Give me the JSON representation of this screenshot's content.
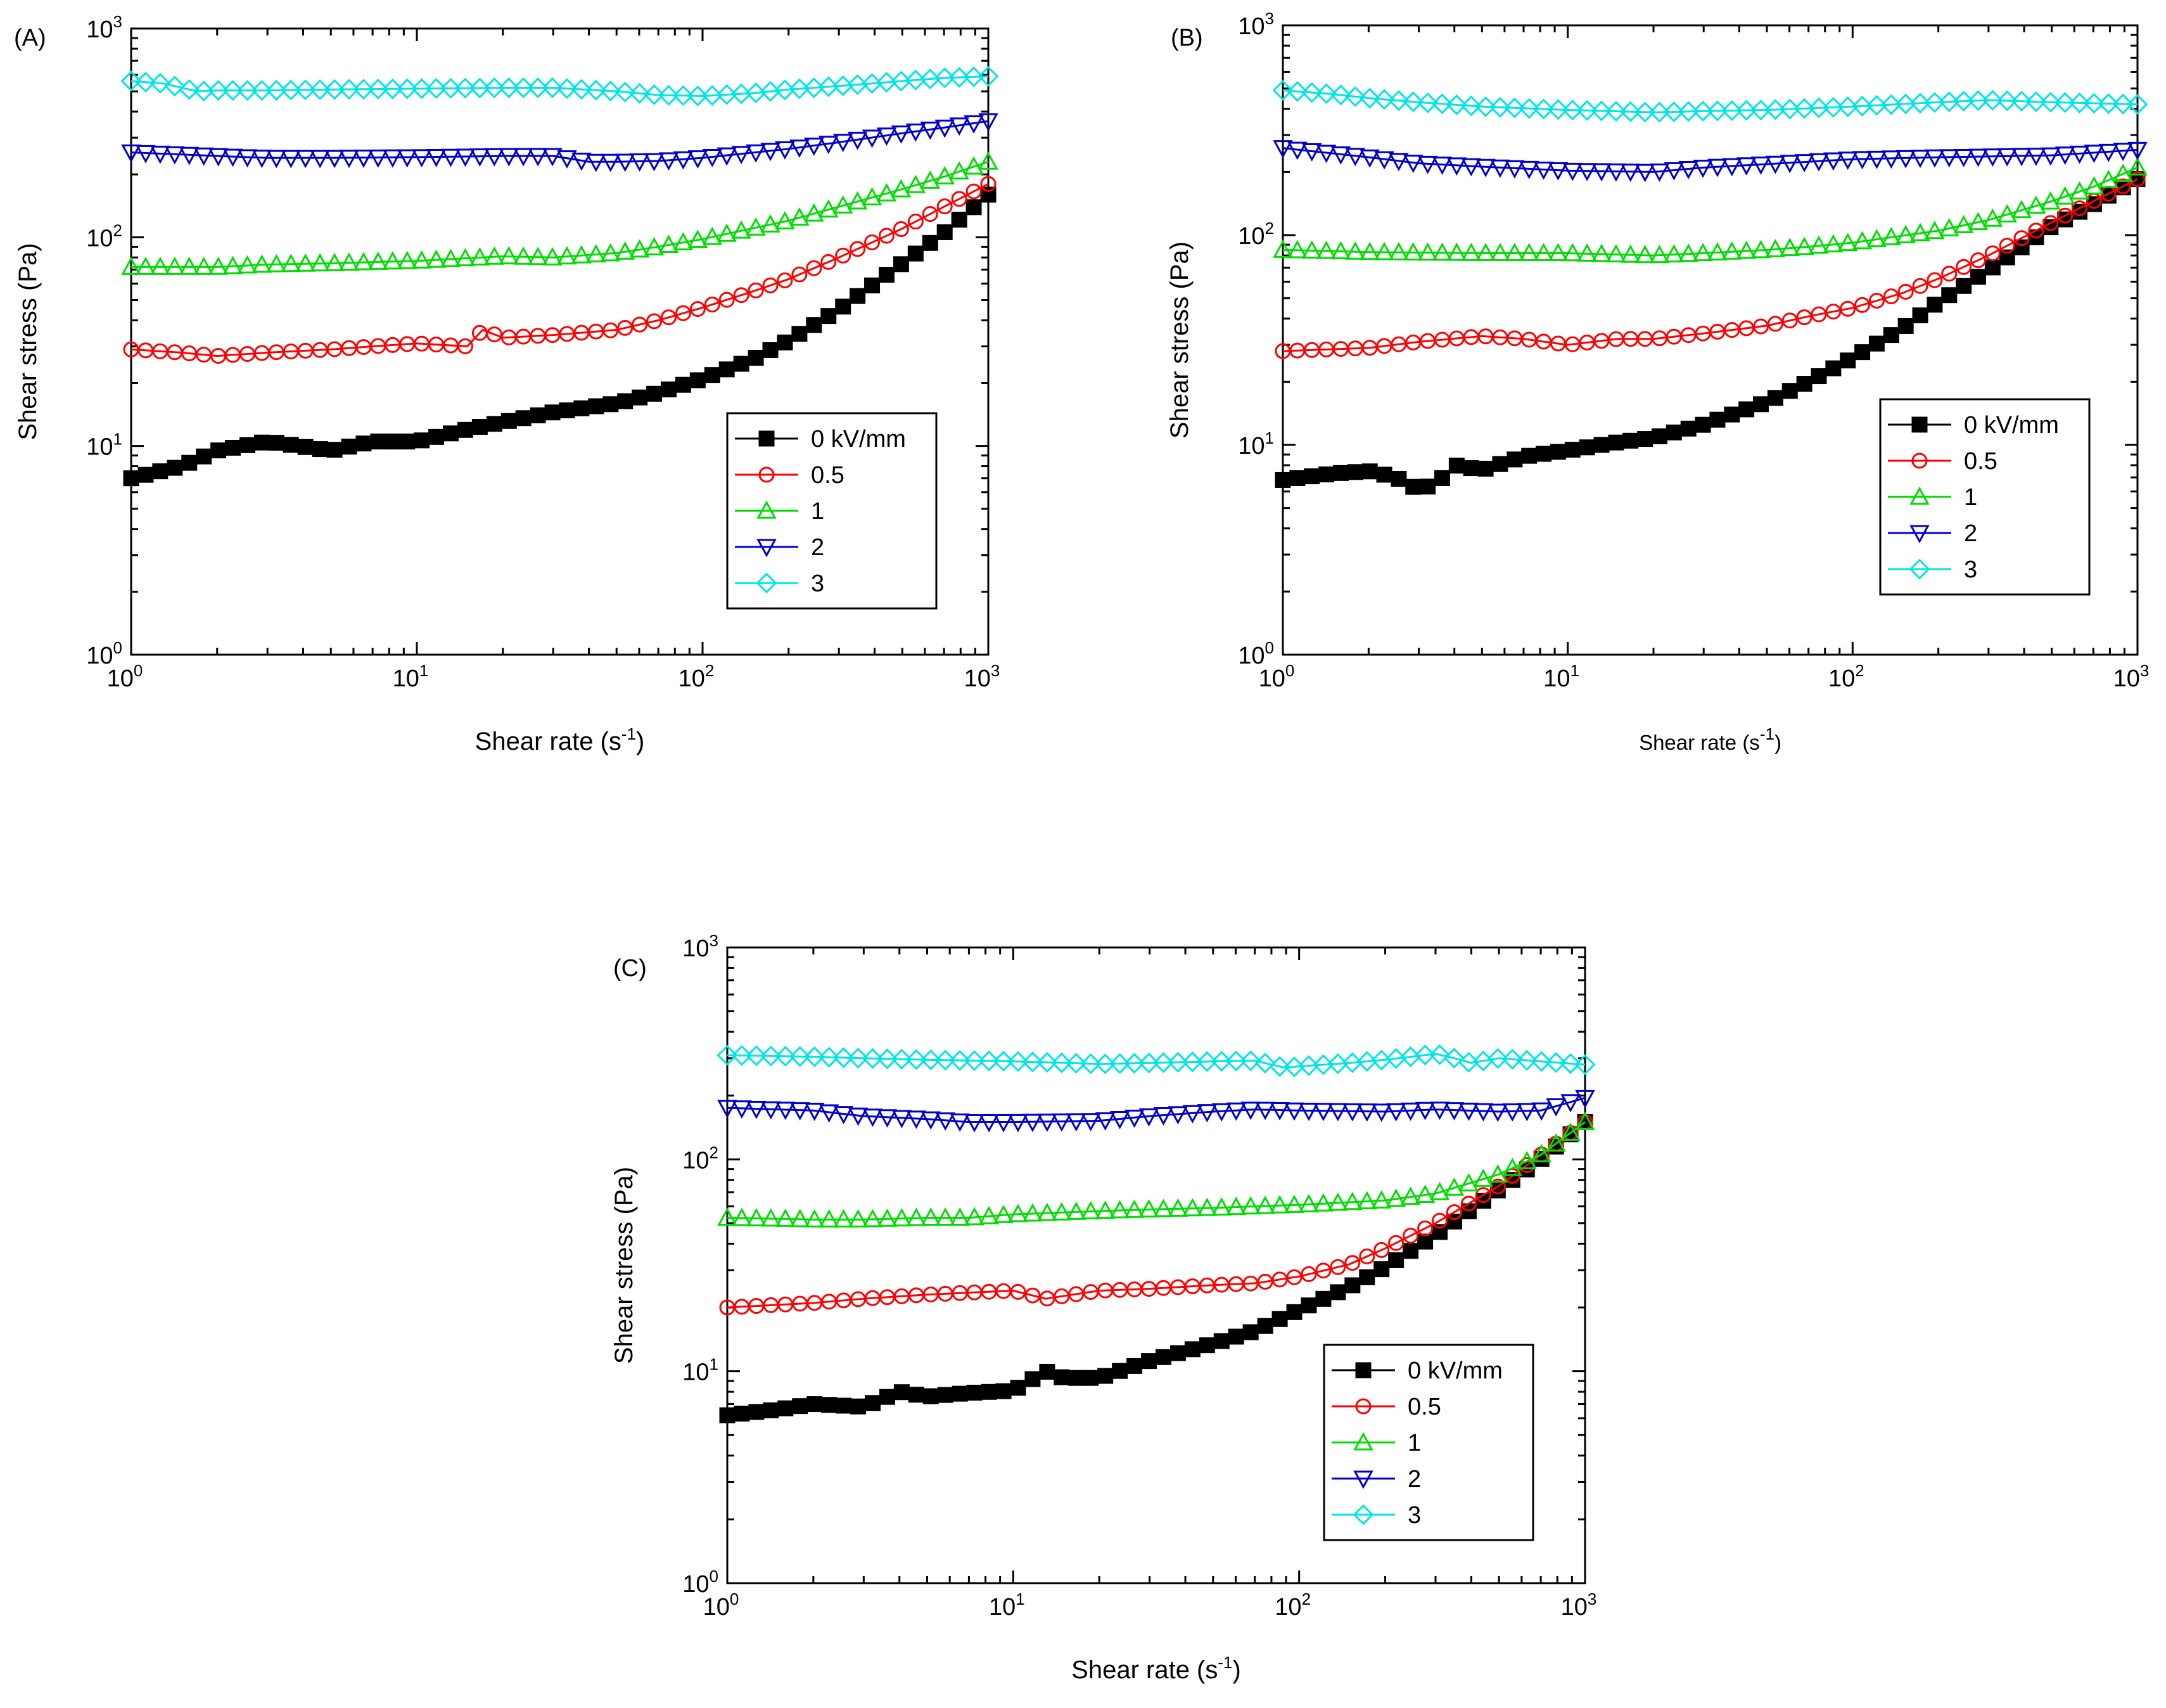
{
  "figure": {
    "colors": {
      "0 kV/mm": "#000000",
      "0.5": "#ff0000",
      "1": "#00dd00",
      "2": "#0000cc",
      "3": "#00e5e5"
    }
  },
  "chart_data": [
    {
      "panel": "(A)",
      "type": "scatter",
      "xscale": "log",
      "yscale": "log",
      "xlabel": "Shear rate (s",
      "xlabel_sup": "-1",
      "xlabel_end": ")",
      "ylabel": "Shear stress (Pa)",
      "xlim": [
        1,
        1000
      ],
      "ylim": [
        1,
        1000
      ],
      "x_ticks": [
        {
          "base": "10",
          "exp": "0"
        },
        {
          "base": "10",
          "exp": "1"
        },
        {
          "base": "10",
          "exp": "2"
        },
        {
          "base": "10",
          "exp": "3"
        }
      ],
      "y_ticks": [
        {
          "base": "10",
          "exp": "0"
        },
        {
          "base": "10",
          "exp": "1"
        },
        {
          "base": "10",
          "exp": "2"
        },
        {
          "base": "10",
          "exp": "3"
        }
      ],
      "legend_position": "center-right",
      "series": [
        {
          "name": "0 kV/mm",
          "marker": "square-filled",
          "color": "#000000",
          "x": [
            1,
            1.5,
            2,
            3,
            5,
            7,
            10,
            15,
            20,
            30,
            50,
            70,
            100,
            150,
            200,
            300,
            500,
            700,
            1000
          ],
          "y": [
            7,
            8,
            9.5,
            10.5,
            9.5,
            10.5,
            10.5,
            12,
            13,
            14.5,
            16,
            18,
            21,
            26,
            32,
            45,
            75,
            105,
            160
          ]
        },
        {
          "name": "0.5",
          "marker": "circle-open",
          "color": "#ff0000",
          "x": [
            1,
            1.5,
            2,
            3,
            5,
            7,
            10,
            15,
            17,
            20,
            30,
            50,
            70,
            100,
            150,
            200,
            300,
            500,
            700,
            1000
          ],
          "y": [
            29,
            28,
            27,
            28,
            29,
            30,
            31,
            30,
            36,
            33,
            34,
            36,
            40,
            46,
            55,
            63,
            80,
            110,
            140,
            180
          ]
        },
        {
          "name": "1",
          "marker": "triangle-up-open",
          "color": "#00dd00",
          "x": [
            1,
            2,
            3,
            5,
            7,
            10,
            20,
            30,
            50,
            70,
            100,
            200,
            300,
            500,
            700,
            1000
          ],
          "y": [
            72,
            72,
            74,
            75,
            76,
            77,
            81,
            80,
            84,
            90,
            98,
            120,
            140,
            170,
            195,
            230
          ]
        },
        {
          "name": "2",
          "marker": "triangle-down-open",
          "color": "#0000cc",
          "x": [
            1,
            2,
            3,
            5,
            10,
            20,
            30,
            40,
            50,
            70,
            100,
            200,
            300,
            500,
            700,
            1000
          ],
          "y": [
            255,
            245,
            240,
            240,
            242,
            245,
            245,
            230,
            230,
            232,
            240,
            265,
            285,
            315,
            335,
            360
          ]
        },
        {
          "name": "3",
          "marker": "diamond-open",
          "color": "#00e5e5",
          "x": [
            1,
            1.3,
            1.7,
            2,
            3,
            5,
            10,
            20,
            30,
            50,
            70,
            100,
            150,
            200,
            300,
            500,
            700,
            1000
          ],
          "y": [
            560,
            545,
            500,
            505,
            505,
            510,
            515,
            520,
            520,
            500,
            480,
            475,
            490,
            510,
            530,
            560,
            580,
            590
          ]
        }
      ]
    },
    {
      "panel": "(B)",
      "type": "scatter",
      "xscale": "log",
      "yscale": "log",
      "xlabel": "Shear rate (s",
      "xlabel_sup": "-1",
      "xlabel_end": ")",
      "ylabel": "Shear stress (Pa)",
      "xlim": [
        1,
        1000
      ],
      "ylim": [
        1,
        1000
      ],
      "x_ticks": [
        {
          "base": "10",
          "exp": "0"
        },
        {
          "base": "10",
          "exp": "1"
        },
        {
          "base": "10",
          "exp": "2"
        },
        {
          "base": "10",
          "exp": "3"
        }
      ],
      "y_ticks": [
        {
          "base": "10",
          "exp": "0"
        },
        {
          "base": "10",
          "exp": "1"
        },
        {
          "base": "10",
          "exp": "2"
        },
        {
          "base": "10",
          "exp": "3"
        }
      ],
      "legend_position": "center-right",
      "series": [
        {
          "name": "0 kV/mm",
          "marker": "square-filled",
          "color": "#000000",
          "x": [
            1,
            1.5,
            2,
            2.5,
            3,
            3.5,
            4,
            5,
            7,
            10,
            15,
            20,
            30,
            50,
            70,
            100,
            150,
            200,
            300,
            500,
            700,
            1000
          ],
          "y": [
            6.8,
            7.3,
            7.5,
            7,
            6.1,
            6.6,
            8,
            7.6,
            8.8,
            9.4,
            10.3,
            10.8,
            12.5,
            16,
            20,
            26,
            36,
            48,
            68,
            110,
            140,
            185
          ]
        },
        {
          "name": "0.5",
          "marker": "circle-open",
          "color": "#ff0000",
          "x": [
            1,
            2,
            3,
            5,
            7,
            10,
            15,
            20,
            30,
            50,
            70,
            100,
            150,
            200,
            300,
            500,
            700,
            1000
          ],
          "y": [
            28,
            29,
            31,
            33,
            32,
            30,
            32,
            32,
            34,
            37,
            41,
            45,
            53,
            62,
            80,
            115,
            145,
            185
          ]
        },
        {
          "name": "1",
          "marker": "triangle-up-open",
          "color": "#00dd00",
          "x": [
            1,
            2,
            5,
            10,
            20,
            30,
            50,
            70,
            100,
            200,
            300,
            500,
            700,
            1000
          ],
          "y": [
            85,
            83,
            82,
            82,
            80,
            82,
            85,
            88,
            92,
            105,
            118,
            145,
            170,
            210
          ]
        },
        {
          "name": "2",
          "marker": "triangle-down-open",
          "color": "#0000cc",
          "x": [
            1,
            2,
            3,
            5,
            10,
            20,
            30,
            50,
            100,
            200,
            500,
            1000
          ],
          "y": [
            260,
            235,
            220,
            212,
            203,
            200,
            210,
            218,
            230,
            235,
            240,
            255
          ]
        },
        {
          "name": "3",
          "marker": "diamond-open",
          "color": "#00e5e5",
          "x": [
            1,
            1.5,
            2,
            3,
            5,
            10,
            20,
            30,
            50,
            100,
            200,
            300,
            500,
            1000
          ],
          "y": [
            490,
            470,
            450,
            430,
            410,
            395,
            385,
            390,
            395,
            410,
            430,
            440,
            430,
            420
          ]
        }
      ]
    },
    {
      "panel": "(C)",
      "type": "scatter",
      "xscale": "log",
      "yscale": "log",
      "xlabel": "Shear rate (s",
      "xlabel_sup": "-1",
      "xlabel_end": ")",
      "ylabel": "Shear stress (Pa)",
      "xlim": [
        1,
        1000
      ],
      "ylim": [
        1,
        1000
      ],
      "x_ticks": [
        {
          "base": "10",
          "exp": "0"
        },
        {
          "base": "10",
          "exp": "1"
        },
        {
          "base": "10",
          "exp": "2"
        },
        {
          "base": "10",
          "exp": "3"
        }
      ],
      "y_ticks": [
        {
          "base": "10",
          "exp": "0"
        },
        {
          "base": "10",
          "exp": "1"
        },
        {
          "base": "10",
          "exp": "2"
        },
        {
          "base": "10",
          "exp": "3"
        }
      ],
      "legend_position": "bottom-right",
      "series": [
        {
          "name": "0 kV/mm",
          "marker": "square-filled",
          "color": "#000000",
          "x": [
            1,
            1.5,
            2,
            3,
            4,
            5,
            7,
            10,
            13,
            15,
            20,
            30,
            50,
            70,
            100,
            150,
            200,
            300,
            500,
            700,
            1000
          ],
          "y": [
            6.2,
            6.6,
            7,
            6.8,
            8,
            7.6,
            7.9,
            8.1,
            10,
            9.3,
            9.3,
            11.2,
            13.5,
            15.5,
            19.5,
            25,
            31,
            44,
            72,
            100,
            150
          ]
        },
        {
          "name": "0.5",
          "marker": "circle-open",
          "color": "#ff0000",
          "x": [
            1,
            2,
            3,
            5,
            7,
            10,
            13,
            20,
            30,
            50,
            70,
            100,
            150,
            200,
            300,
            500,
            700,
            1000
          ],
          "y": [
            20,
            21,
            22,
            23,
            23.5,
            24,
            22,
            24,
            24.5,
            25.5,
            26,
            28,
            32,
            38,
            50,
            75,
            105,
            150
          ]
        },
        {
          "name": "1",
          "marker": "triangle-up-open",
          "color": "#00dd00",
          "x": [
            1,
            2,
            3,
            5,
            7,
            10,
            20,
            30,
            50,
            70,
            100,
            200,
            300,
            500,
            700,
            1000
          ],
          "y": [
            53,
            52,
            52,
            53,
            53,
            55,
            57,
            58,
            59,
            60,
            61,
            64,
            69,
            85,
            105,
            150
          ]
        },
        {
          "name": "2",
          "marker": "triangle-down-open",
          "color": "#0000cc",
          "x": [
            1,
            2,
            3,
            5,
            7,
            10,
            20,
            30,
            50,
            70,
            100,
            200,
            300,
            500,
            700,
            1000
          ],
          "y": [
            175,
            170,
            160,
            155,
            150,
            150,
            152,
            160,
            168,
            172,
            170,
            168,
            172,
            168,
            170,
            195
          ]
        },
        {
          "name": "3",
          "marker": "diamond-open",
          "color": "#00e5e5",
          "x": [
            1,
            2,
            3,
            5,
            10,
            20,
            30,
            50,
            70,
            90,
            100,
            150,
            200,
            300,
            350,
            400,
            500,
            700,
            1000
          ],
          "y": [
            310,
            305,
            300,
            295,
            290,
            282,
            285,
            290,
            292,
            270,
            275,
            285,
            295,
            315,
            300,
            285,
            300,
            290,
            280
          ]
        }
      ]
    }
  ]
}
